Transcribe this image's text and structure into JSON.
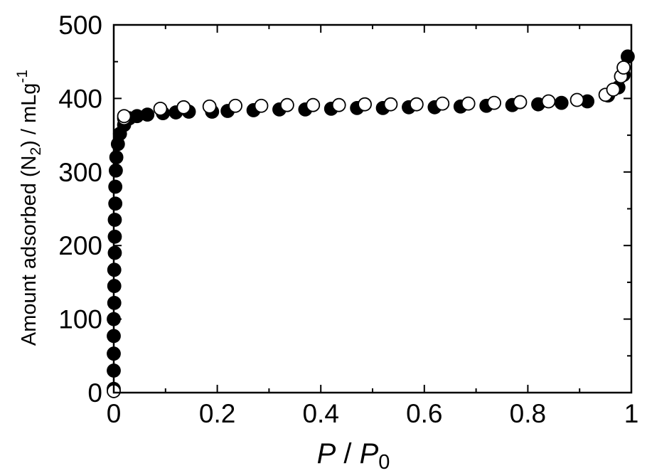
{
  "chart_data": {
    "type": "scatter",
    "xlabel_parts": {
      "p": "P",
      "sep": " / ",
      "p0": "P",
      "sub": "0"
    },
    "ylabel_parts": {
      "pre": "Amount adsorbed (N",
      "sub": "2",
      "mid": ") / mLg",
      "sup": "-1"
    },
    "xlim": [
      0,
      1
    ],
    "ylim": [
      0,
      500
    ],
    "x_ticks": [
      0,
      0.2,
      0.4,
      0.6,
      0.8,
      1
    ],
    "x_tick_labels": [
      "0",
      "0.2",
      "0.4",
      "0.6",
      "0.8",
      "1"
    ],
    "y_ticks": [
      0,
      100,
      200,
      300,
      400,
      500
    ],
    "y_tick_labels": [
      "0",
      "100",
      "200",
      "300",
      "400",
      "500"
    ],
    "grid": false,
    "series": [
      {
        "marker": "filled-circle",
        "color": "#000000",
        "points": [
          [
            0.0,
            5
          ],
          [
            0.0,
            30
          ],
          [
            0.0,
            53
          ],
          [
            0.0,
            77
          ],
          [
            0.0,
            100
          ],
          [
            0.001,
            122
          ],
          [
            0.001,
            145
          ],
          [
            0.001,
            167
          ],
          [
            0.002,
            190
          ],
          [
            0.002,
            212
          ],
          [
            0.002,
            235
          ],
          [
            0.003,
            257
          ],
          [
            0.003,
            280
          ],
          [
            0.004,
            302
          ],
          [
            0.005,
            320
          ],
          [
            0.008,
            338
          ],
          [
            0.012,
            352
          ],
          [
            0.02,
            364
          ],
          [
            0.03,
            373
          ],
          [
            0.045,
            376
          ],
          [
            0.065,
            378
          ],
          [
            0.095,
            380
          ],
          [
            0.12,
            381
          ],
          [
            0.145,
            382
          ],
          [
            0.19,
            382
          ],
          [
            0.22,
            383
          ],
          [
            0.27,
            384
          ],
          [
            0.32,
            385
          ],
          [
            0.37,
            385
          ],
          [
            0.42,
            386
          ],
          [
            0.47,
            387
          ],
          [
            0.52,
            387
          ],
          [
            0.57,
            388
          ],
          [
            0.62,
            388
          ],
          [
            0.67,
            389
          ],
          [
            0.72,
            390
          ],
          [
            0.77,
            391
          ],
          [
            0.82,
            392
          ],
          [
            0.865,
            394
          ],
          [
            0.915,
            396
          ],
          [
            0.955,
            404
          ],
          [
            0.975,
            415
          ],
          [
            0.985,
            432
          ],
          [
            0.993,
            457
          ]
        ]
      },
      {
        "marker": "open-circle",
        "color": "#000000",
        "points": [
          [
            0.0,
            2
          ],
          [
            0.02,
            373
          ],
          [
            0.02,
            376
          ],
          [
            0.09,
            386
          ],
          [
            0.135,
            388
          ],
          [
            0.185,
            389
          ],
          [
            0.235,
            390
          ],
          [
            0.285,
            390
          ],
          [
            0.335,
            391
          ],
          [
            0.385,
            391
          ],
          [
            0.435,
            391
          ],
          [
            0.485,
            392
          ],
          [
            0.535,
            392
          ],
          [
            0.585,
            392
          ],
          [
            0.635,
            393
          ],
          [
            0.685,
            393
          ],
          [
            0.735,
            394
          ],
          [
            0.785,
            395
          ],
          [
            0.84,
            396
          ],
          [
            0.895,
            398
          ],
          [
            0.95,
            405
          ],
          [
            0.965,
            412
          ],
          [
            0.98,
            430
          ],
          [
            0.985,
            442
          ]
        ]
      }
    ]
  }
}
